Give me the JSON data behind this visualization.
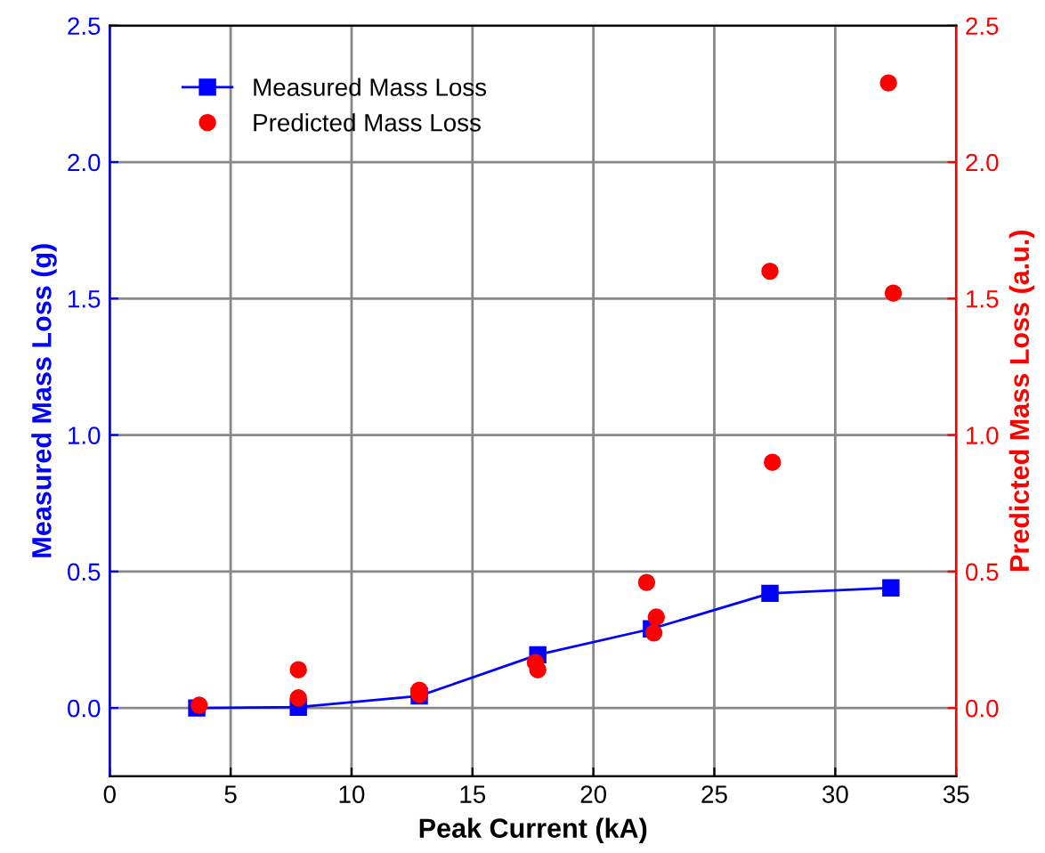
{
  "chart_data": {
    "type": "line",
    "xlabel": "Peak Current (kA)",
    "ylabel": "Measured Mass Loss (g)",
    "y2label": "Predicted Mass Loss (a.u.)",
    "xlim": [
      0,
      35
    ],
    "xticks": [
      0,
      5,
      10,
      15,
      20,
      25,
      30,
      35
    ],
    "ylim": [
      -0.25,
      2.5
    ],
    "yticks": [
      {
        "value": 0,
        "label": "0.0"
      },
      0.5,
      {
        "value": 1,
        "label": "1.0"
      },
      1.5,
      {
        "value": 2,
        "label": "2.0"
      },
      2.5
    ],
    "y2lim": [
      -0.25,
      2.5
    ],
    "y2ticks": [
      {
        "value": 0,
        "label": "0.0"
      },
      0.5,
      {
        "value": 1,
        "label": "1.0"
      },
      1.5,
      {
        "value": 2,
        "label": "2.0"
      },
      2.5
    ],
    "grid": true,
    "legend": "top left",
    "series": [
      {
        "name": "Measured Mass Loss",
        "marker": "square",
        "color": "#0000ff",
        "x": [
          3.6,
          7.8,
          12.8,
          17.7,
          22.4,
          27.3,
          32.3
        ],
        "values": [
          0.0,
          0.003,
          0.044,
          0.195,
          0.29,
          0.42,
          0.44
        ]
      },
      {
        "name": "Predicted Mass Loss",
        "type": "scatter",
        "marker": "circle",
        "axis": "y2",
        "color": "#ff0000",
        "x": [
          3.7,
          7.8,
          7.8,
          12.8,
          12.8,
          17.6,
          17.7,
          22.2,
          22.6,
          22.5,
          27.3,
          27.4,
          32.2,
          32.4
        ],
        "values": [
          0.01,
          0.14,
          0.037,
          0.065,
          0.05,
          0.167,
          0.14,
          0.46,
          0.333,
          0.275,
          1.6,
          0.9,
          2.29,
          1.52
        ]
      }
    ]
  }
}
